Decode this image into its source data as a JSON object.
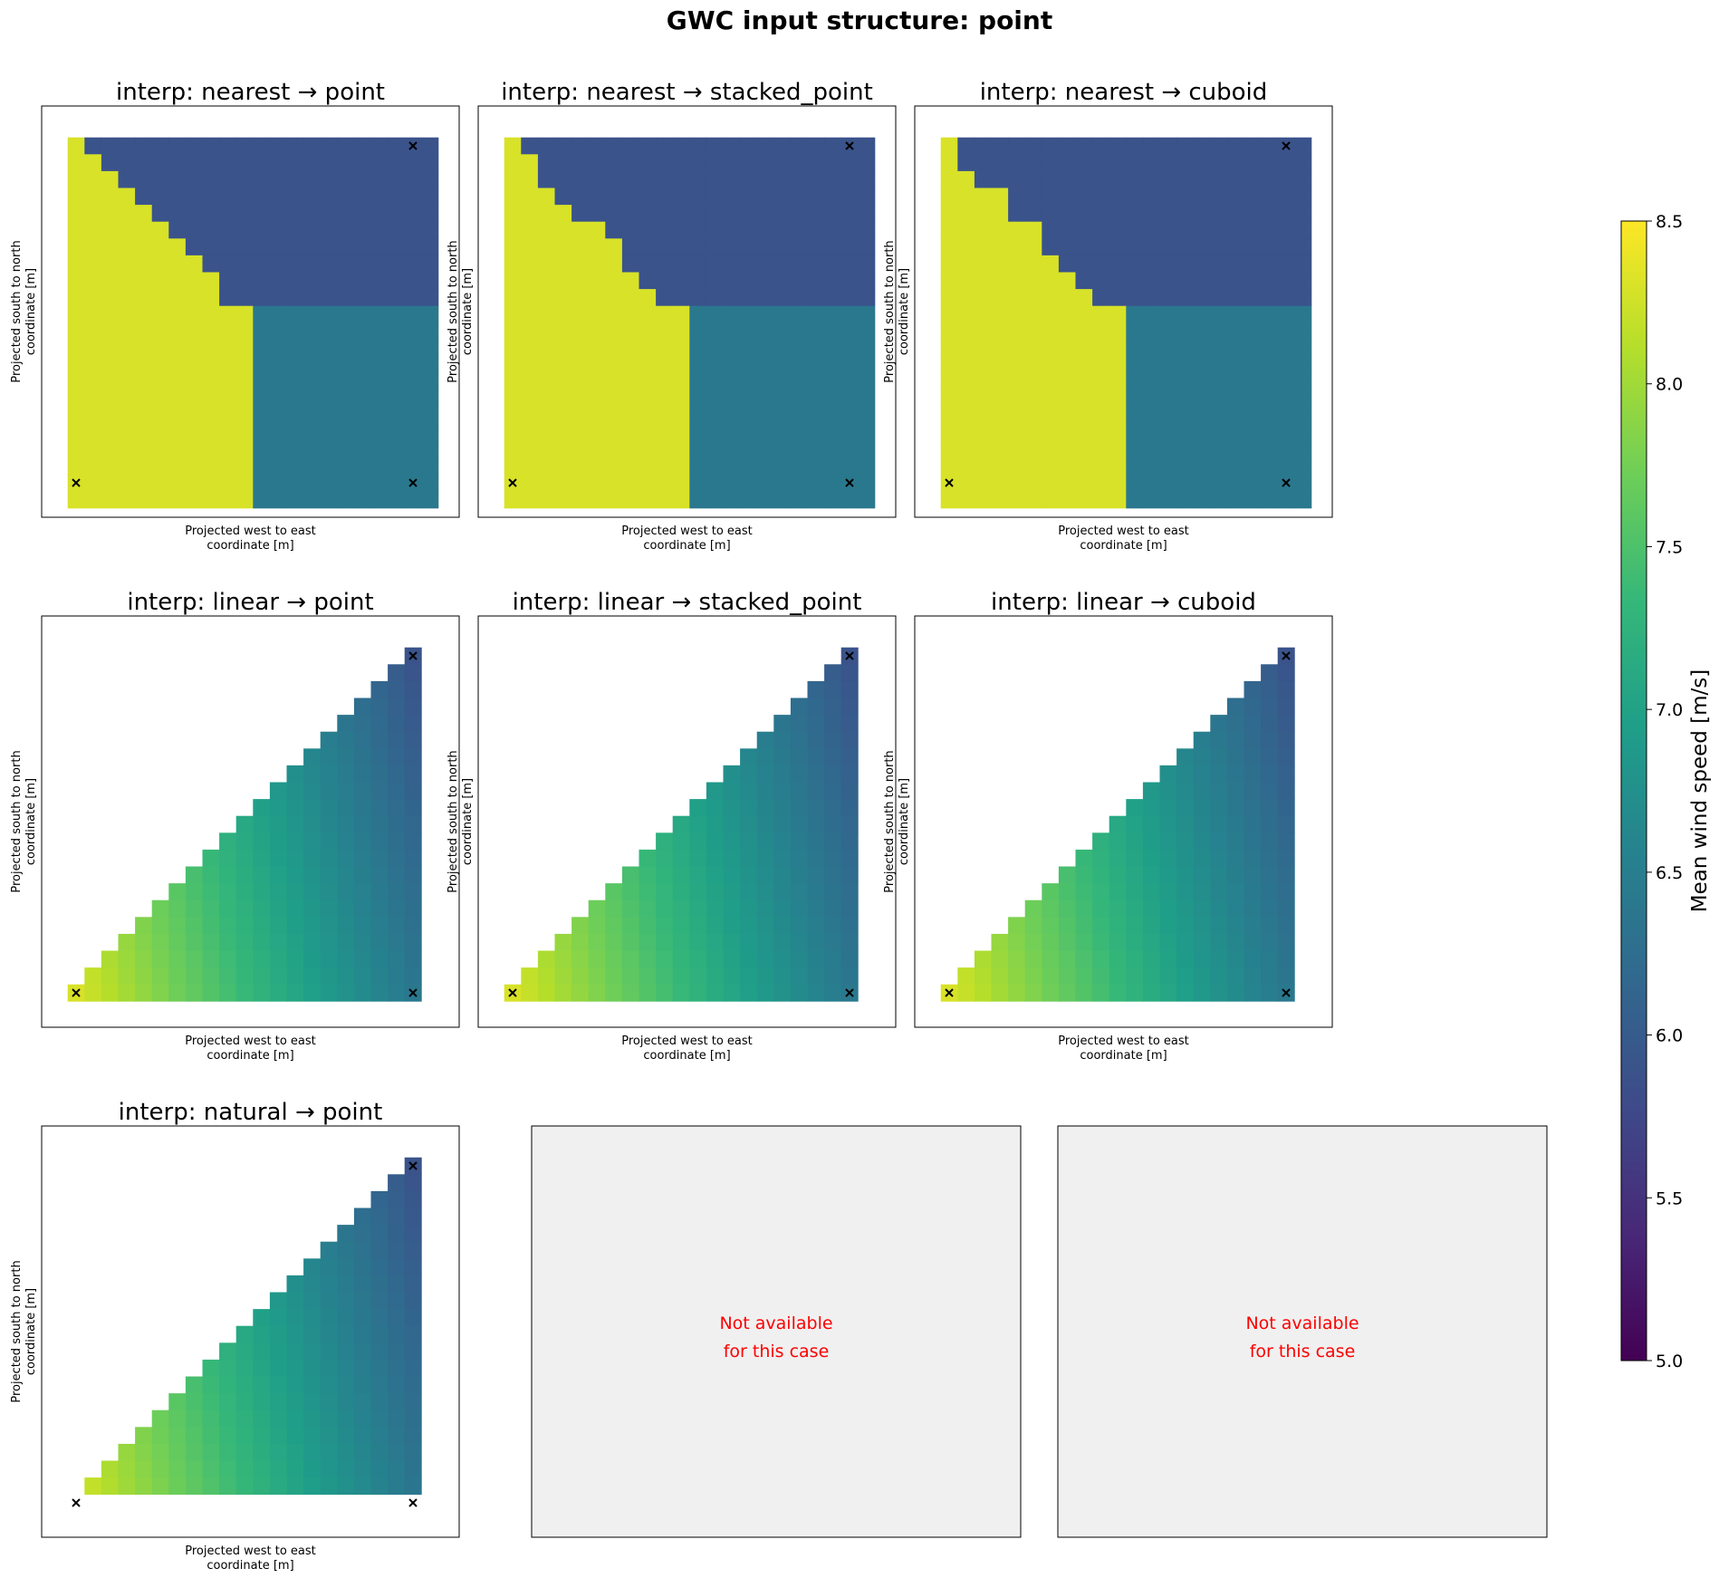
{
  "figure": {
    "title": "GWC input structure: point"
  },
  "axis_labels": {
    "xlabel": [
      "Projected west to east",
      "coordinate [m]"
    ],
    "ylabel": [
      "Projected south to north",
      "coordinate [m]"
    ]
  },
  "unavailable": {
    "text": [
      "Not available",
      "for this case"
    ],
    "color": "#ff0000",
    "background": "#f0f0f0"
  },
  "colorbar": {
    "label": "Mean wind speed [m/s]",
    "colormap": "viridis",
    "vmin": 5.0,
    "vmax": 8.5,
    "ticks": [
      "5.0",
      "5.5",
      "6.0",
      "6.5",
      "7.0",
      "7.5",
      "8.0",
      "8.5"
    ]
  },
  "chart_data": [
    {
      "type": "heatmap",
      "title": "interp: nearest → point",
      "method": "nearest",
      "grid": {
        "nx": 22,
        "ny": 22
      },
      "stations": [
        {
          "x": 0.0,
          "y": 0.0,
          "value": 8.3
        },
        {
          "x": 1.0,
          "y": 0.0,
          "value": 6.4
        },
        {
          "x": 1.0,
          "y": 1.0,
          "value": 5.9
        }
      ]
    },
    {
      "type": "heatmap",
      "title": "interp: nearest → stacked_point",
      "method": "nearest",
      "grid": {
        "nx": 22,
        "ny": 22
      },
      "stations": [
        {
          "x": 0.0,
          "y": 0.0,
          "value": 8.3
        },
        {
          "x": 1.0,
          "y": 0.0,
          "value": 6.4
        },
        {
          "x": 1.0,
          "y": 1.0,
          "value": 5.9
        }
      ]
    },
    {
      "type": "heatmap",
      "title": "interp: nearest → cuboid",
      "method": "nearest",
      "grid": {
        "nx": 22,
        "ny": 22
      },
      "stations": [
        {
          "x": 0.0,
          "y": 0.0,
          "value": 8.3
        },
        {
          "x": 1.0,
          "y": 0.0,
          "value": 6.4
        },
        {
          "x": 1.0,
          "y": 1.0,
          "value": 5.9
        }
      ]
    },
    {
      "type": "heatmap",
      "title": "interp: linear → point",
      "method": "linear",
      "grid": {
        "nx": 22,
        "ny": 22
      },
      "stations": [
        {
          "x": 0.0,
          "y": 0.0,
          "value": 8.3
        },
        {
          "x": 1.0,
          "y": 0.0,
          "value": 6.4
        },
        {
          "x": 1.0,
          "y": 1.0,
          "value": 5.9
        }
      ]
    },
    {
      "type": "heatmap",
      "title": "interp: linear → stacked_point",
      "method": "linear",
      "grid": {
        "nx": 22,
        "ny": 22
      },
      "stations": [
        {
          "x": 0.0,
          "y": 0.0,
          "value": 8.3
        },
        {
          "x": 1.0,
          "y": 0.0,
          "value": 6.4
        },
        {
          "x": 1.0,
          "y": 1.0,
          "value": 5.9
        }
      ]
    },
    {
      "type": "heatmap",
      "title": "interp: linear → cuboid",
      "method": "linear",
      "grid": {
        "nx": 22,
        "ny": 22
      },
      "stations": [
        {
          "x": 0.0,
          "y": 0.0,
          "value": 8.3
        },
        {
          "x": 1.0,
          "y": 0.0,
          "value": 6.4
        },
        {
          "x": 1.0,
          "y": 1.0,
          "value": 5.9
        }
      ]
    },
    {
      "type": "heatmap",
      "title": "interp: natural → point",
      "method": "natural",
      "grid": {
        "nx": 22,
        "ny": 22
      },
      "stations": [
        {
          "x": 0.0,
          "y": 0.0,
          "value": 8.3
        },
        {
          "x": 1.0,
          "y": 0.0,
          "value": 6.4
        },
        {
          "x": 1.0,
          "y": 1.0,
          "value": 5.9
        }
      ]
    },
    {
      "type": "unavailable"
    },
    {
      "type": "unavailable"
    }
  ]
}
